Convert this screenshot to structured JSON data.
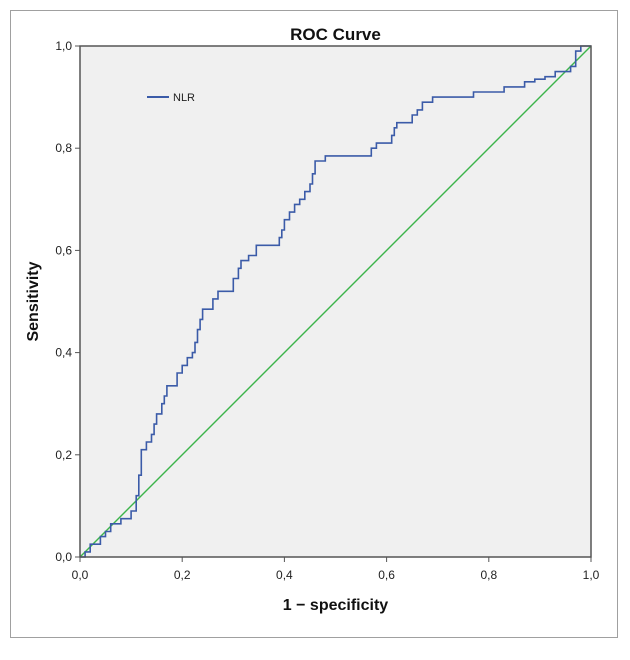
{
  "chart_data": {
    "type": "line",
    "title": "ROC Curve",
    "xlabel": "1 − specificity",
    "ylabel": "Sensitivity",
    "xlim": [
      0,
      1
    ],
    "ylim": [
      0,
      1
    ],
    "x_ticks": [
      0,
      0.2,
      0.4,
      0.6,
      0.8,
      1.0
    ],
    "y_ticks": [
      0,
      0.2,
      0.4,
      0.6,
      0.8,
      1.0
    ],
    "x_tick_labels": [
      "0,0",
      "0,2",
      "0,4",
      "0,6",
      "0,8",
      "1,0"
    ],
    "y_tick_labels": [
      "0,0",
      "0,2",
      "0,4",
      "0,6",
      "0,8",
      "1,0"
    ],
    "grid": false,
    "legend": {
      "position": "top-left",
      "entries": [
        "NLR"
      ]
    },
    "series": [
      {
        "name": "NLR",
        "color": "#3b5ba8",
        "step": true,
        "points": [
          [
            0.0,
            0.0
          ],
          [
            0.01,
            0.0
          ],
          [
            0.01,
            0.01
          ],
          [
            0.02,
            0.01
          ],
          [
            0.02,
            0.025
          ],
          [
            0.04,
            0.025
          ],
          [
            0.04,
            0.04
          ],
          [
            0.05,
            0.04
          ],
          [
            0.05,
            0.05
          ],
          [
            0.06,
            0.05
          ],
          [
            0.06,
            0.065
          ],
          [
            0.08,
            0.065
          ],
          [
            0.08,
            0.075
          ],
          [
            0.1,
            0.075
          ],
          [
            0.1,
            0.09
          ],
          [
            0.11,
            0.09
          ],
          [
            0.11,
            0.12
          ],
          [
            0.115,
            0.12
          ],
          [
            0.115,
            0.16
          ],
          [
            0.12,
            0.16
          ],
          [
            0.12,
            0.21
          ],
          [
            0.13,
            0.21
          ],
          [
            0.13,
            0.225
          ],
          [
            0.14,
            0.225
          ],
          [
            0.14,
            0.24
          ],
          [
            0.145,
            0.24
          ],
          [
            0.145,
            0.26
          ],
          [
            0.15,
            0.26
          ],
          [
            0.15,
            0.28
          ],
          [
            0.16,
            0.28
          ],
          [
            0.16,
            0.3
          ],
          [
            0.165,
            0.3
          ],
          [
            0.165,
            0.315
          ],
          [
            0.17,
            0.315
          ],
          [
            0.17,
            0.335
          ],
          [
            0.19,
            0.335
          ],
          [
            0.19,
            0.36
          ],
          [
            0.2,
            0.36
          ],
          [
            0.2,
            0.375
          ],
          [
            0.21,
            0.375
          ],
          [
            0.21,
            0.39
          ],
          [
            0.22,
            0.39
          ],
          [
            0.22,
            0.4
          ],
          [
            0.225,
            0.4
          ],
          [
            0.225,
            0.42
          ],
          [
            0.23,
            0.42
          ],
          [
            0.23,
            0.445
          ],
          [
            0.235,
            0.445
          ],
          [
            0.235,
            0.465
          ],
          [
            0.24,
            0.465
          ],
          [
            0.24,
            0.485
          ],
          [
            0.26,
            0.485
          ],
          [
            0.26,
            0.505
          ],
          [
            0.27,
            0.505
          ],
          [
            0.27,
            0.52
          ],
          [
            0.3,
            0.52
          ],
          [
            0.3,
            0.545
          ],
          [
            0.31,
            0.545
          ],
          [
            0.31,
            0.565
          ],
          [
            0.315,
            0.565
          ],
          [
            0.315,
            0.58
          ],
          [
            0.33,
            0.58
          ],
          [
            0.33,
            0.59
          ],
          [
            0.345,
            0.59
          ],
          [
            0.345,
            0.61
          ],
          [
            0.39,
            0.61
          ],
          [
            0.39,
            0.625
          ],
          [
            0.395,
            0.625
          ],
          [
            0.395,
            0.64
          ],
          [
            0.4,
            0.64
          ],
          [
            0.4,
            0.66
          ],
          [
            0.41,
            0.66
          ],
          [
            0.41,
            0.675
          ],
          [
            0.42,
            0.675
          ],
          [
            0.42,
            0.69
          ],
          [
            0.43,
            0.69
          ],
          [
            0.43,
            0.7
          ],
          [
            0.44,
            0.7
          ],
          [
            0.44,
            0.715
          ],
          [
            0.45,
            0.715
          ],
          [
            0.45,
            0.73
          ],
          [
            0.455,
            0.73
          ],
          [
            0.455,
            0.75
          ],
          [
            0.46,
            0.75
          ],
          [
            0.46,
            0.775
          ],
          [
            0.48,
            0.775
          ],
          [
            0.48,
            0.785
          ],
          [
            0.57,
            0.785
          ],
          [
            0.57,
            0.8
          ],
          [
            0.58,
            0.8
          ],
          [
            0.58,
            0.81
          ],
          [
            0.61,
            0.81
          ],
          [
            0.61,
            0.825
          ],
          [
            0.615,
            0.825
          ],
          [
            0.615,
            0.84
          ],
          [
            0.62,
            0.84
          ],
          [
            0.62,
            0.85
          ],
          [
            0.65,
            0.85
          ],
          [
            0.65,
            0.865
          ],
          [
            0.66,
            0.865
          ],
          [
            0.66,
            0.875
          ],
          [
            0.67,
            0.875
          ],
          [
            0.67,
            0.89
          ],
          [
            0.69,
            0.89
          ],
          [
            0.69,
            0.9
          ],
          [
            0.77,
            0.9
          ],
          [
            0.77,
            0.91
          ],
          [
            0.83,
            0.91
          ],
          [
            0.83,
            0.92
          ],
          [
            0.87,
            0.92
          ],
          [
            0.87,
            0.93
          ],
          [
            0.89,
            0.93
          ],
          [
            0.89,
            0.935
          ],
          [
            0.91,
            0.935
          ],
          [
            0.91,
            0.94
          ],
          [
            0.93,
            0.94
          ],
          [
            0.93,
            0.95
          ],
          [
            0.96,
            0.95
          ],
          [
            0.96,
            0.96
          ],
          [
            0.97,
            0.96
          ],
          [
            0.97,
            0.99
          ],
          [
            0.98,
            0.99
          ],
          [
            0.98,
            1.0
          ],
          [
            1.0,
            1.0
          ]
        ]
      },
      {
        "name": "Reference Line",
        "color": "#3cb44b",
        "step": false,
        "points": [
          [
            0,
            0
          ],
          [
            1,
            1
          ]
        ]
      }
    ]
  }
}
